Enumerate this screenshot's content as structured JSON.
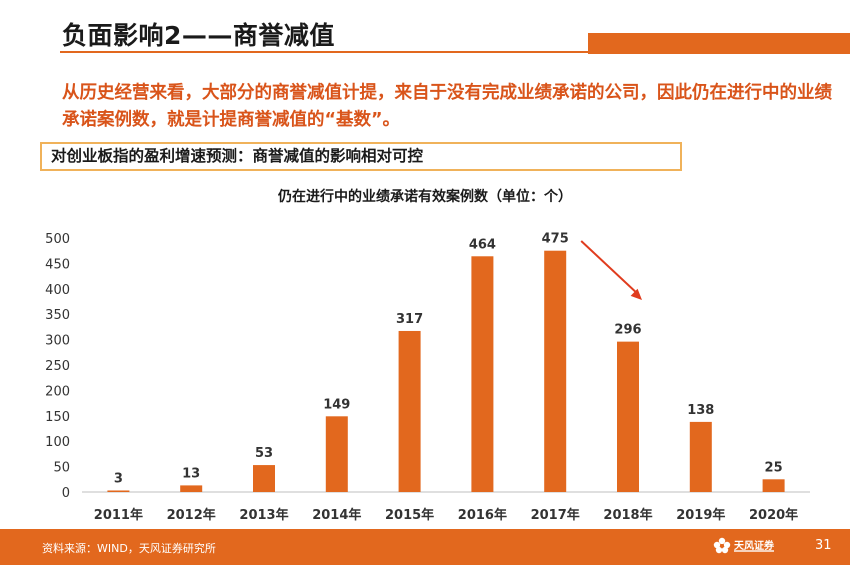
{
  "header": {
    "title": "负面影响2——商誉减值"
  },
  "intro": {
    "text": "从历史经营来看，大部分的商誉减值计提，来自于没有完成业绩承诺的公司，因此仍在进行中的业绩承诺案例数，就是计提商誉减值的“基数”。"
  },
  "callout": {
    "text": "对创业板指的盈利增速预测：商誉减值的影响相对可控"
  },
  "colors": {
    "accent": "#e2681e",
    "bar": "#e2681e",
    "intro_text": "#d9541a",
    "arrow": "#e03c1e",
    "callout_border": "#f0b25a"
  },
  "chart_data": {
    "type": "bar",
    "title": "仍在进行中的业绩承诺有效案例数（单位：个）",
    "categories": [
      "2011年",
      "2012年",
      "2013年",
      "2014年",
      "2015年",
      "2016年",
      "2017年",
      "2018年",
      "2019年",
      "2020年"
    ],
    "values": [
      3,
      13,
      53,
      149,
      317,
      464,
      475,
      296,
      138,
      25
    ],
    "ylim": [
      0,
      500
    ],
    "yticks": [
      0,
      50,
      100,
      150,
      200,
      250,
      300,
      350,
      400,
      450,
      500
    ],
    "xlabel": "",
    "ylabel": "",
    "grid": false,
    "annotation": "red arrow pointing down from 2017 toward 2018"
  },
  "footer": {
    "source": "资料来源：WIND，天风证券研究所",
    "logo_text": "天风证券",
    "page_number": "31"
  }
}
